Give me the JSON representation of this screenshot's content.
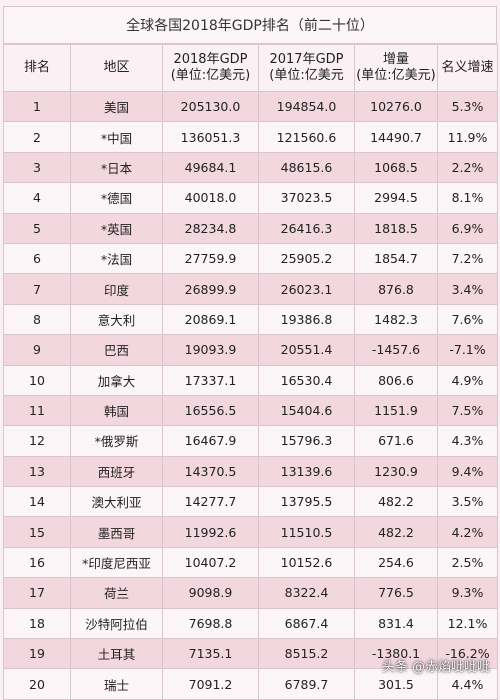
{
  "title": "全球各国2018年GDP排名（前二十位）",
  "headers": [
    [
      "排名"
    ],
    [
      "地区"
    ],
    [
      "2018年GDP",
      "(单位:亿美元)"
    ],
    [
      "2017年GDP",
      "(单位:亿美元"
    ],
    [
      "增量",
      "(单位:亿美元)"
    ],
    [
      "名义增速"
    ]
  ],
  "rows": [
    [
      "1",
      "美国",
      "205130.0",
      "194854.0",
      "10276.0",
      "5.3%"
    ],
    [
      "2",
      "*中国",
      "136051.3",
      "121560.6",
      "14490.7",
      "11.9%"
    ],
    [
      "3",
      "*日本",
      "49684.1",
      "48615.6",
      "1068.5",
      "2.2%"
    ],
    [
      "4",
      "*德国",
      "40018.0",
      "37023.5",
      "2994.5",
      "8.1%"
    ],
    [
      "5",
      "*英国",
      "28234.8",
      "26416.3",
      "1818.5",
      "6.9%"
    ],
    [
      "6",
      "*法国",
      "27759.9",
      "25905.2",
      "1854.7",
      "7.2%"
    ],
    [
      "7",
      "印度",
      "26899.9",
      "26023.1",
      "876.8",
      "3.4%"
    ],
    [
      "8",
      "意大利",
      "20869.1",
      "19386.8",
      "1482.3",
      "7.6%"
    ],
    [
      "9",
      "巴西",
      "19093.9",
      "20551.4",
      "-1457.6",
      "-7.1%"
    ],
    [
      "10",
      "加拿大",
      "17337.1",
      "16530.4",
      "806.6",
      "4.9%"
    ],
    [
      "11",
      "韩国",
      "16556.5",
      "15404.6",
      "1151.9",
      "7.5%"
    ],
    [
      "12",
      "*俄罗斯",
      "16467.9",
      "15796.3",
      "671.6",
      "4.3%"
    ],
    [
      "13",
      "西班牙",
      "14370.5",
      "13139.6",
      "1230.9",
      "9.4%"
    ],
    [
      "14",
      "澳大利亚",
      "14277.7",
      "13795.5",
      "482.2",
      "3.5%"
    ],
    [
      "15",
      "墨西哥",
      "11992.6",
      "11510.5",
      "482.2",
      "4.2%"
    ],
    [
      "16",
      "*印度尼西亚",
      "10407.2",
      "10152.6",
      "254.6",
      "2.5%"
    ],
    [
      "17",
      "荷兰",
      "9098.9",
      "8322.4",
      "776.5",
      "9.3%"
    ],
    [
      "18",
      "沙特阿拉伯",
      "7698.8",
      "6867.4",
      "831.4",
      "12.1%"
    ],
    [
      "19",
      "土耳其",
      "7135.1",
      "8515.2",
      "-1380.1",
      "-16.2%"
    ],
    [
      "20",
      "瑞士",
      "7091.2",
      "6789.7",
      "301.5",
      "4.4%"
    ]
  ],
  "watermark": "头条 @赤焰呲呲呲"
}
